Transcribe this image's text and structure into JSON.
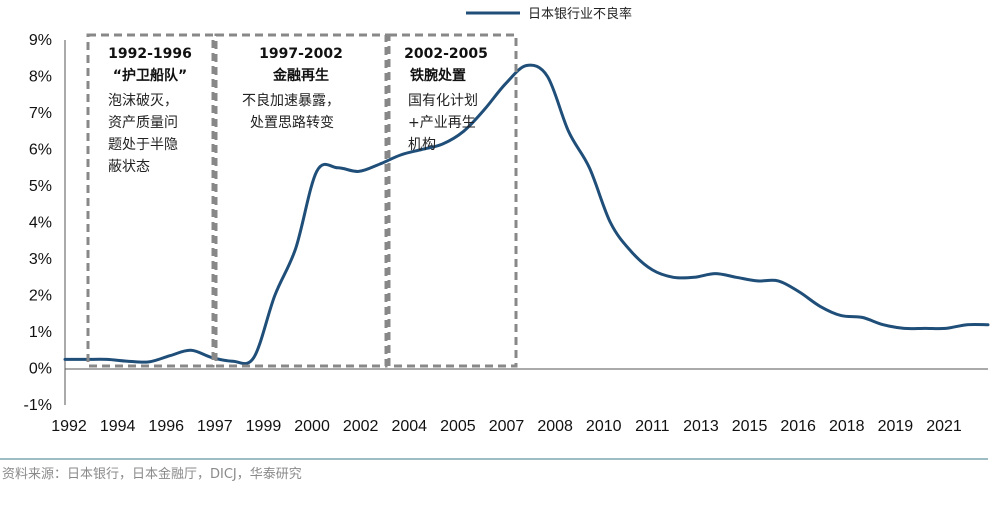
{
  "chart_data": {
    "type": "line",
    "title": "",
    "xlabel": "",
    "ylabel": "",
    "ylim": [
      -1,
      9
    ],
    "y_ticks": [
      "-1%",
      "0%",
      "1%",
      "2%",
      "3%",
      "4%",
      "5%",
      "6%",
      "7%",
      "8%",
      "9%"
    ],
    "x_tick_labels": [
      "1992",
      "1994",
      "1996",
      "1997",
      "1999",
      "2000",
      "2002",
      "2004",
      "2005",
      "2007",
      "2008",
      "2010",
      "2011",
      "2013",
      "2015",
      "2016",
      "2018",
      "2019",
      "2021"
    ],
    "grid": false,
    "legend_position": "top-right",
    "series": [
      {
        "name": "日本银行业不良率",
        "color": "#1f4e79",
        "values": [
          0.25,
          0.25,
          0.25,
          0.2,
          0.18,
          0.35,
          0.5,
          0.3,
          0.2,
          0.3,
          2.0,
          3.3,
          5.4,
          5.5,
          5.4,
          5.6,
          5.85,
          6.0,
          6.15,
          6.5,
          7.1,
          7.8,
          8.3,
          8.0,
          6.5,
          5.5,
          4.0,
          3.2,
          2.7,
          2.5,
          2.5,
          2.6,
          2.5,
          2.4,
          2.4,
          2.1,
          1.7,
          1.45,
          1.4,
          1.2,
          1.1,
          1.1,
          1.1,
          1.2,
          1.2
        ]
      }
    ]
  },
  "annotations": [
    {
      "title": "1992-1996",
      "subtitle": "“护卫船队”",
      "lines": [
        "泡沫破灭，",
        "资产质量问",
        "题处于半隐",
        "蔽状态"
      ]
    },
    {
      "title": "1997-2002",
      "subtitle": "金融再生",
      "lines": [
        "不良加速暴露，",
        "处置思路转变"
      ]
    },
    {
      "title": "2002-2005",
      "subtitle": "铁腕处置",
      "lines": [
        "国有化计划",
        "+产业再生",
        "机构"
      ]
    }
  ],
  "source": "资料来源：日本银行，日本金融厅，DICJ，华泰研究"
}
